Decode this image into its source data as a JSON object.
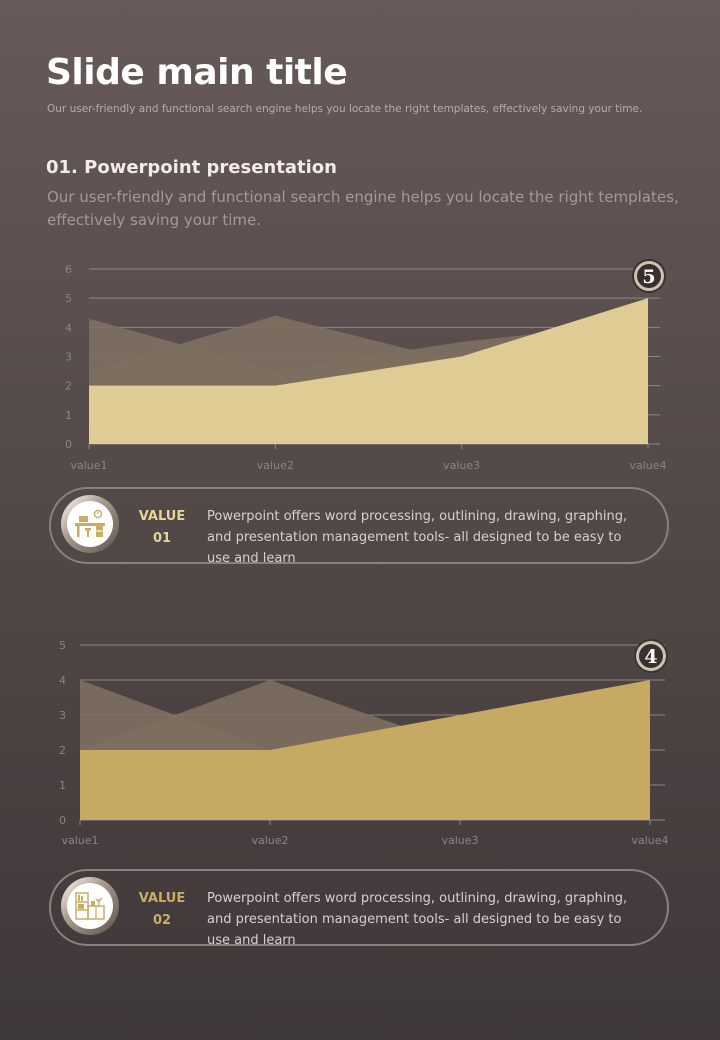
{
  "header": {
    "title": "Slide main title",
    "subtitle": "Our user-friendly and functional search engine helps you locate the right templates, effectively saving your time."
  },
  "section": {
    "title": "01. Powerpoint presentation",
    "description": "Our user-friendly and functional search engine helps you locate the right templates, effectively saving your time."
  },
  "cards": [
    {
      "label_line1": "VALUE",
      "label_line2": "01",
      "text": "Powerpoint offers word processing, outlining, drawing, graphing, and presentation management tools- all designed to be easy to use and learn",
      "icon": "desk-icon",
      "label_color": "#e6d498"
    },
    {
      "label_line1": "VALUE",
      "label_line2": "02",
      "text": "Powerpoint offers word processing, outlining, drawing, graphing, and presentation management tools- all designed to be easy to use and learn",
      "icon": "bookshelf-icon",
      "label_color": "#c9ad64"
    }
  ],
  "chart_data": [
    {
      "type": "area",
      "categories": [
        "value1",
        "value2",
        "value3",
        "value4"
      ],
      "ylim": [
        0,
        6
      ],
      "yticks": [
        "0",
        "1",
        "2",
        "3",
        "4",
        "5",
        "6"
      ],
      "grid": true,
      "series": [
        {
          "values": [
            4.3,
            2.5,
            3.5,
            4.2
          ],
          "color": "#7d7060"
        },
        {
          "values": [
            2.5,
            4.4,
            2.8,
            4.1
          ],
          "color": "#7d7060"
        },
        {
          "values": [
            2,
            2,
            3,
            5
          ],
          "color": "#dfcc94"
        }
      ],
      "badge": "5"
    },
    {
      "type": "area",
      "categories": [
        "value1",
        "value2",
        "value3",
        "value4"
      ],
      "ylim": [
        0,
        5
      ],
      "yticks": [
        "0",
        "1",
        "2",
        "3",
        "4",
        "5"
      ],
      "grid": true,
      "series": [
        {
          "values": [
            4,
            2,
            2.5,
            3.2
          ],
          "color": "#7d7060"
        },
        {
          "values": [
            2,
            4,
            2.1,
            3.8
          ],
          "color": "#7d7060"
        },
        {
          "values": [
            2,
            2,
            3,
            4
          ],
          "color": "#c6a962"
        }
      ],
      "badge": "4"
    }
  ]
}
